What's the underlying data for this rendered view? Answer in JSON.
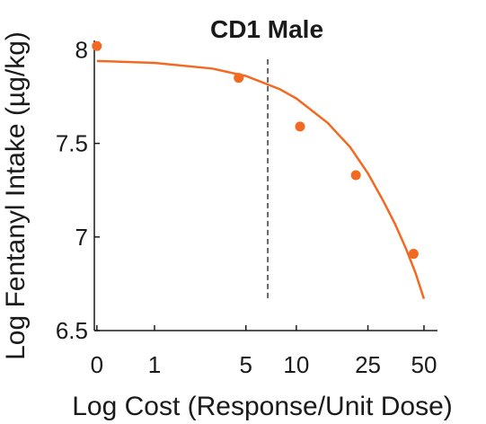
{
  "chart_data": {
    "type": "scatter",
    "title": "CD1 Male",
    "xlabel": "Log Cost (Response/Unit Dose)",
    "ylabel": "Log Fentanyl Intake (µg/kg)",
    "x_scale": "log(1+x)",
    "x_ticks": [
      0,
      1,
      5,
      10,
      25,
      50
    ],
    "x_tick_labels": [
      "0",
      "1",
      "5",
      "10",
      "25",
      "50"
    ],
    "y_ticks": [
      6.5,
      7,
      7.5,
      8
    ],
    "y_tick_labels": [
      "6.5",
      "7",
      "7.5",
      "8"
    ],
    "ylim": [
      6.5,
      8.05
    ],
    "xlim": [
      -0.03,
      59
    ],
    "grid": false,
    "legend": "none",
    "series": [
      {
        "type": "scatter",
        "x": [
          0,
          4.5,
          10.5,
          21.5,
          44
        ],
        "y": [
          8.02,
          7.85,
          7.59,
          7.33,
          6.91
        ]
      },
      {
        "type": "line",
        "x": [
          0,
          1,
          3,
          5,
          8,
          10,
          15,
          20,
          25,
          30,
          35,
          40,
          45,
          50
        ],
        "y": [
          7.94,
          7.93,
          7.9,
          7.86,
          7.79,
          7.74,
          7.61,
          7.48,
          7.34,
          7.2,
          7.07,
          6.94,
          6.81,
          6.67
        ]
      }
    ],
    "reference_line": {
      "x": 6.8,
      "style": "dashed"
    },
    "colors": {
      "series": "#f26a21",
      "reference_line": "#1a1a1a",
      "axis": "#1a1a1a"
    }
  }
}
